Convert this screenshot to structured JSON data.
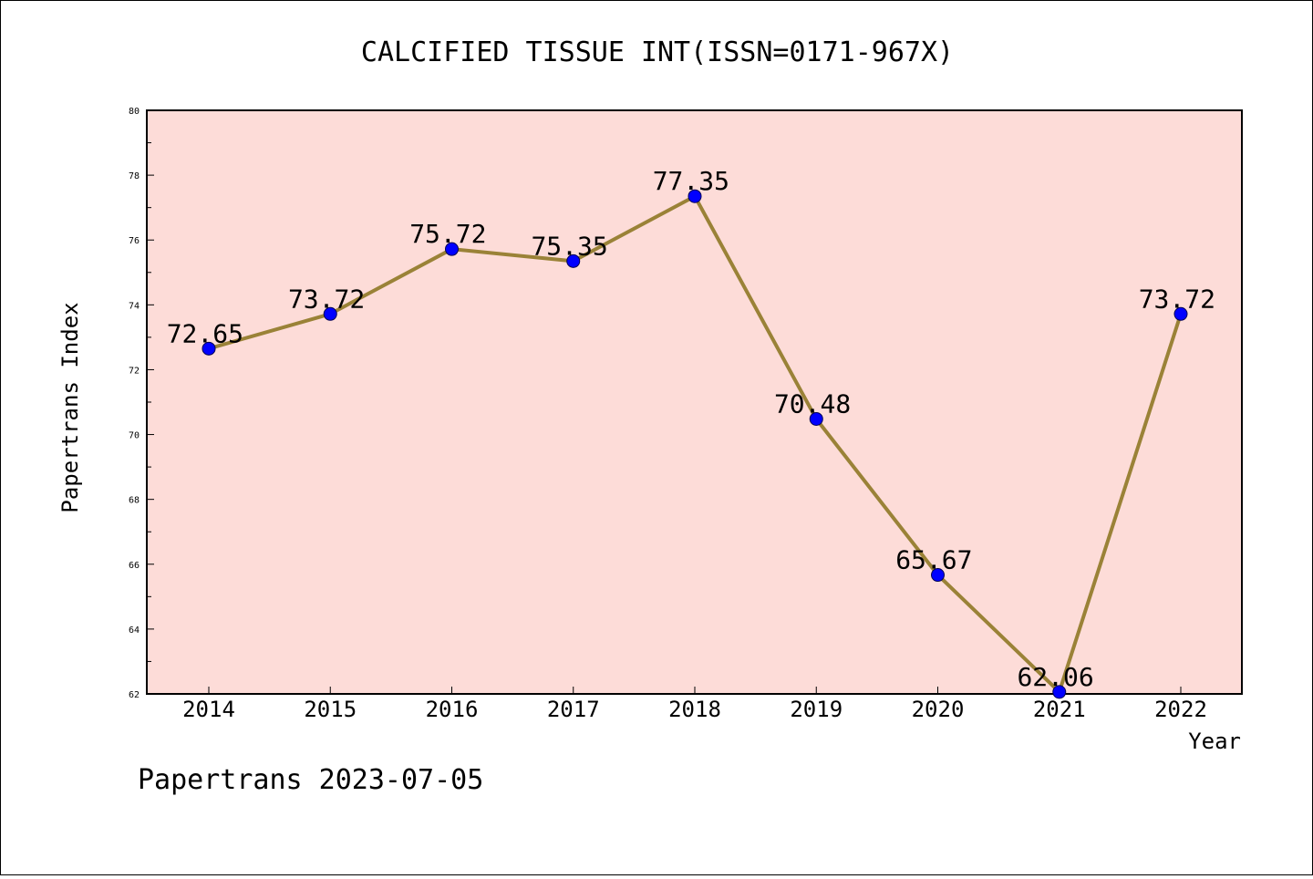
{
  "chart_data": {
    "type": "line",
    "title": "CALCIFIED TISSUE INT(ISSN=0171-967X)",
    "xlabel": "Year",
    "ylabel": "Papertrans Index",
    "categories": [
      "2014",
      "2015",
      "2016",
      "2017",
      "2018",
      "2019",
      "2020",
      "2021",
      "2022"
    ],
    "values": [
      72.65,
      73.72,
      75.72,
      75.35,
      77.35,
      70.48,
      65.67,
      62.06,
      73.72
    ],
    "data_labels": [
      "72.65",
      "73.72",
      "75.72",
      "75.35",
      "77.35",
      "70.48",
      "65.67",
      "62.06",
      "73.72"
    ],
    "ylim": [
      62,
      80
    ],
    "yticks": [
      "62",
      "64",
      "66",
      "68",
      "70",
      "72",
      "74",
      "76",
      "78",
      "80"
    ],
    "grid": false,
    "colors": {
      "plot_background": "#fddcd8",
      "line": "#9a8237",
      "marker": "#0000ff"
    }
  },
  "footer": {
    "watermark": "Papertrans 2023-07-05"
  }
}
